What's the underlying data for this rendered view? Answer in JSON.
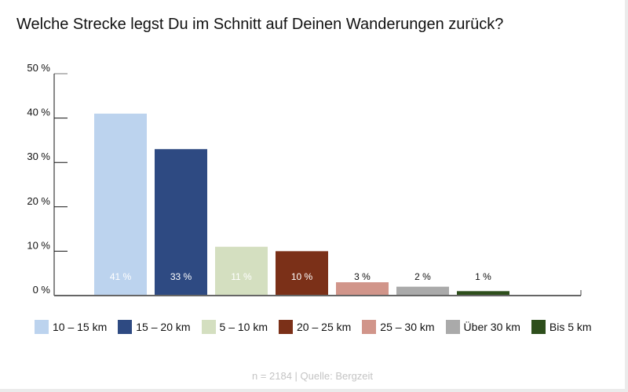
{
  "chart_data": {
    "type": "bar",
    "title": "Welche Strecke legst Du im Schnitt auf Deinen Wanderungen zurück?",
    "categories": [
      "10 – 15 km",
      "15 – 20 km",
      "5 – 10 km",
      "20 – 25 km",
      "25 – 30 km",
      "Über 30 km",
      "Bis 5 km"
    ],
    "values": [
      41,
      33,
      11,
      10,
      3,
      2,
      1
    ],
    "data_labels": [
      "41 %",
      "33 %",
      "11 %",
      "10 %",
      "3 %",
      "2 %",
      "1 %"
    ],
    "colors": [
      "#bcd3ee",
      "#2e4a82",
      "#d4dfc0",
      "#7b3018",
      "#d1958a",
      "#aaaaaa",
      "#2e4f1c"
    ],
    "label_colors": [
      "#ffffff",
      "#ffffff",
      "#ffffff",
      "#ffffff",
      "#111111",
      "#111111",
      "#111111"
    ],
    "yticks": [
      "0 %",
      "10 %",
      "20 %",
      "30 %",
      "40 %",
      "50 %"
    ],
    "ylim": [
      0,
      50
    ],
    "xlabel": "",
    "ylabel": "",
    "legend_position": "bottom",
    "footer": "n = 2184 | Quelle: Bergzeit"
  }
}
